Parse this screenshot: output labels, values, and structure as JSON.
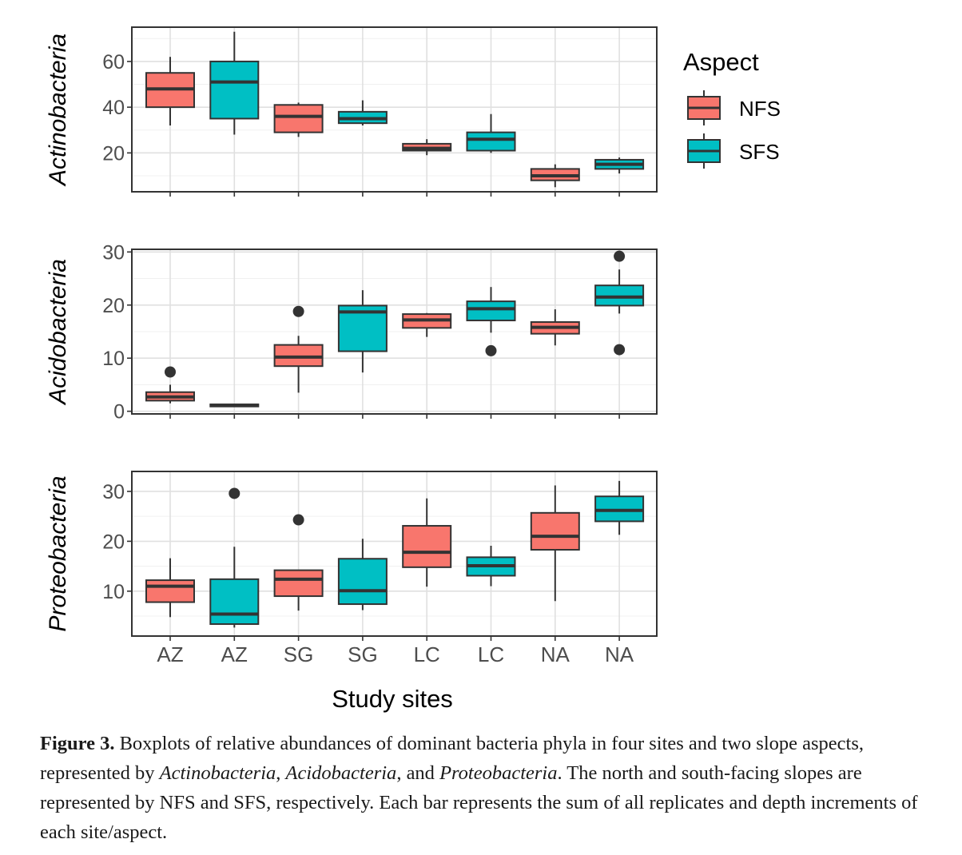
{
  "chart_data": {
    "type": "boxplot",
    "xlabel": "Study sites",
    "categories": [
      "AZ",
      "AZ",
      "SG",
      "SG",
      "LC",
      "LC",
      "NA",
      "NA"
    ],
    "aspects": [
      "NFS",
      "SFS",
      "NFS",
      "SFS",
      "NFS",
      "SFS",
      "NFS",
      "SFS"
    ],
    "legend": {
      "title": "Aspect",
      "entries": [
        {
          "name": "NFS",
          "color": "#F8766D"
        },
        {
          "name": "SFS",
          "color": "#00BFC4"
        }
      ],
      "placement": "right"
    },
    "grid": true,
    "panels": [
      {
        "ylabel": "Actinobacteria",
        "ylim": [
          3,
          75
        ],
        "yticks": [
          20,
          40,
          60
        ],
        "boxes": [
          {
            "min": 32,
            "q1": 40,
            "median": 48,
            "q3": 55,
            "max": 62,
            "outliers": []
          },
          {
            "min": 28,
            "q1": 35,
            "median": 51,
            "q3": 60,
            "max": 73,
            "outliers": []
          },
          {
            "min": 27,
            "q1": 29,
            "median": 36,
            "q3": 41,
            "max": 42,
            "outliers": []
          },
          {
            "min": 32,
            "q1": 33,
            "median": 35,
            "q3": 38,
            "max": 43,
            "outliers": []
          },
          {
            "min": 19,
            "q1": 21,
            "median": 22,
            "q3": 24,
            "max": 26,
            "outliers": []
          },
          {
            "min": 20,
            "q1": 21,
            "median": 26,
            "q3": 29,
            "max": 37,
            "outliers": []
          },
          {
            "min": 5,
            "q1": 8,
            "median": 10,
            "q3": 13,
            "max": 15,
            "outliers": []
          },
          {
            "min": 11,
            "q1": 13,
            "median": 15,
            "q3": 17,
            "max": 18,
            "outliers": []
          }
        ]
      },
      {
        "ylabel": "Acidobacteria",
        "ylim": [
          -0.5,
          30.5
        ],
        "yticks": [
          0,
          10,
          20,
          30
        ],
        "boxes": [
          {
            "min": 1.5,
            "q1": 2,
            "median": 2.7,
            "q3": 3.6,
            "max": 5,
            "outliers": [
              7.4
            ]
          },
          {
            "min": 0.8,
            "q1": 0.9,
            "median": 1.1,
            "q3": 1.3,
            "max": 1.4,
            "outliers": []
          },
          {
            "min": 3.5,
            "q1": 8.5,
            "median": 10.2,
            "q3": 12.5,
            "max": 14.2,
            "outliers": [
              18.8
            ]
          },
          {
            "min": 7.3,
            "q1": 11.3,
            "median": 18.7,
            "q3": 19.9,
            "max": 22.8,
            "outliers": []
          },
          {
            "min": 14,
            "q1": 15.7,
            "median": 17.2,
            "q3": 18.3,
            "max": 18.5,
            "outliers": []
          },
          {
            "min": 14.8,
            "q1": 17.1,
            "median": 19.3,
            "q3": 20.7,
            "max": 23.4,
            "outliers": [
              11.4
            ]
          },
          {
            "min": 12.4,
            "q1": 14.6,
            "median": 15.8,
            "q3": 16.8,
            "max": 19.2,
            "outliers": []
          },
          {
            "min": 18.4,
            "q1": 19.9,
            "median": 21.5,
            "q3": 23.7,
            "max": 26.7,
            "outliers": [
              29.2,
              11.6
            ]
          }
        ]
      },
      {
        "ylabel": "Proteobacteria",
        "ylim": [
          1,
          34
        ],
        "yticks": [
          10,
          20,
          30
        ],
        "boxes": [
          {
            "min": 4.8,
            "q1": 7.8,
            "median": 11,
            "q3": 12.2,
            "max": 16.6,
            "outliers": []
          },
          {
            "min": 2.7,
            "q1": 3.4,
            "median": 5.4,
            "q3": 12.4,
            "max": 18.9,
            "outliers": [
              29.6
            ]
          },
          {
            "min": 6.1,
            "q1": 9,
            "median": 12.4,
            "q3": 14.2,
            "max": 14.2,
            "outliers": [
              24.3
            ]
          },
          {
            "min": 6.2,
            "q1": 7.4,
            "median": 10.1,
            "q3": 16.5,
            "max": 20.5,
            "outliers": []
          },
          {
            "min": 10.9,
            "q1": 14.8,
            "median": 17.8,
            "q3": 23.1,
            "max": 28.6,
            "outliers": []
          },
          {
            "min": 11,
            "q1": 13.1,
            "median": 15.1,
            "q3": 16.8,
            "max": 19.1,
            "outliers": []
          },
          {
            "min": 8,
            "q1": 18.3,
            "median": 21,
            "q3": 25.7,
            "max": 31.2,
            "outliers": []
          },
          {
            "min": 21.3,
            "q1": 24,
            "median": 26.2,
            "q3": 29,
            "max": 32.1,
            "outliers": []
          }
        ]
      }
    ]
  },
  "caption": {
    "label": "Figure 3.",
    "text_1": " Boxplots of relative abundances of dominant bacteria phyla in four sites and two slope aspects, represented by ",
    "ital_1": "Actinobacteria",
    "text_2": ", ",
    "ital_2": "Acidobacteria",
    "text_3": ", and ",
    "ital_3": "Proteobacteria",
    "text_4": ". The north and south-facing slopes are represented by NFS and SFS, respectively. Each bar represents the sum of all replicates and depth increments of each site/aspect."
  }
}
